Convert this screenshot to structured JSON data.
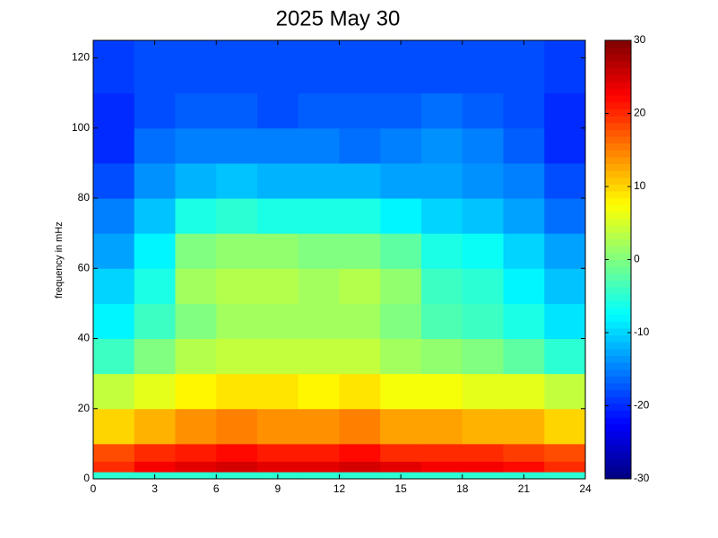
{
  "chart_data": {
    "type": "heatmap",
    "title": "2025 May 30",
    "y_label": "frequency in mHz",
    "x_bins": [
      0,
      2,
      4,
      6,
      8,
      10,
      12,
      14,
      16,
      18,
      20,
      22,
      24
    ],
    "y_bins": [
      0,
      2,
      5,
      10,
      20,
      30,
      40,
      50,
      60,
      70,
      80,
      90,
      100,
      110,
      125
    ],
    "z": [
      [
        -5,
        -5,
        -5,
        -5,
        -5,
        -5,
        -5,
        -5,
        -5,
        -5,
        -5,
        -5
      ],
      [
        20,
        23,
        24,
        25,
        24,
        24,
        25,
        24,
        23,
        23,
        22,
        20
      ],
      [
        18,
        20,
        21,
        22,
        21,
        21,
        22,
        20,
        20,
        20,
        19,
        18
      ],
      [
        10,
        12,
        14,
        15,
        14,
        14,
        15,
        13,
        13,
        12,
        12,
        10
      ],
      [
        4,
        6,
        8,
        9,
        9,
        8,
        9,
        7,
        7,
        6,
        6,
        4
      ],
      [
        -4,
        0,
        3,
        4,
        4,
        4,
        4,
        2,
        1,
        0,
        -2,
        -5
      ],
      [
        -8,
        -4,
        0,
        2,
        2,
        2,
        2,
        0,
        -3,
        -4,
        -6,
        -9
      ],
      [
        -10,
        -6,
        2,
        3,
        3,
        2,
        3,
        1,
        -4,
        -5,
        -8,
        -11
      ],
      [
        -13,
        -8,
        0,
        1,
        1,
        0,
        0,
        -2,
        -6,
        -7,
        -10,
        -13
      ],
      [
        -15,
        -11,
        -6,
        -5,
        -6,
        -6,
        -6,
        -8,
        -10,
        -11,
        -13,
        -16
      ],
      [
        -18,
        -14,
        -12,
        -11,
        -12,
        -12,
        -12,
        -13,
        -13,
        -14,
        -15,
        -18
      ],
      [
        -20,
        -16,
        -15,
        -15,
        -15,
        -15,
        -16,
        -15,
        -14,
        -15,
        -17,
        -20
      ],
      [
        -20,
        -18,
        -17,
        -17,
        -18,
        -17,
        -17,
        -17,
        -16,
        -17,
        -18,
        -20
      ],
      [
        -19,
        -18,
        -18,
        -18,
        -18,
        -18,
        -18,
        -18,
        -18,
        -18,
        -18,
        -19
      ]
    ],
    "colormap": "jet",
    "xlim": [
      0,
      24
    ],
    "xticks": [
      0,
      3,
      6,
      9,
      12,
      15,
      18,
      21,
      24
    ],
    "ylim": [
      0,
      125
    ],
    "yticks": [
      0,
      20,
      40,
      60,
      80,
      100,
      120
    ],
    "clim": [
      -30,
      30
    ],
    "cticks": [
      -30,
      -20,
      -10,
      0,
      10,
      20,
      30
    ]
  }
}
